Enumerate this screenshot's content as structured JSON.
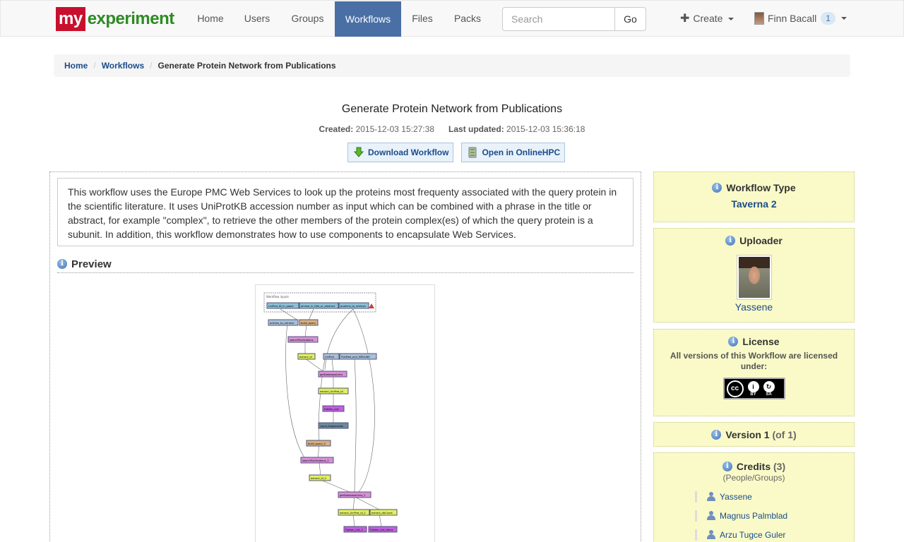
{
  "brand": {
    "part1": "my",
    "part2": "experiment"
  },
  "nav": {
    "items": [
      "Home",
      "Users",
      "Groups",
      "Workflows",
      "Files",
      "Packs"
    ],
    "active": "Workflows",
    "search_placeholder": "Search",
    "search_button": "Go",
    "create_label": "Create",
    "user_name": "Finn Bacall",
    "user_badge": "1"
  },
  "breadcrumb": {
    "home": "Home",
    "workflows": "Workflows",
    "current": "Generate Protein Network from Publications"
  },
  "workflow": {
    "title": "Generate Protein Network from Publications",
    "created_label": "Created:",
    "created": "2015-12-03 15:27:38",
    "updated_label": "Last updated:",
    "updated": "2015-12-03 15:36:18",
    "download_label": "Download Workflow",
    "open_label": "Open in OnlineHPC",
    "description": "This workflow uses the Europe PMC Web Services to look up the proteins most frequenty associated with the query protein in the scientific literature. It uses UniProtKB accession number as input which can be combined with a phrase in the title or abstract, for example \"complex\", to retrieve the other members of the protein complex(es) of which the query protein is a subunit. In addition, this workflow demonstrates how to use components to encapsulate Web Services.",
    "preview_label": "Preview"
  },
  "diagram": {
    "inputs_label": "Workflow inputs",
    "nodes": [
      "UniProt_ID_in_paper",
      "phrase_in_title_or_abstract",
      "proteins_to_retrieve",
      "articles_to_retrieve",
      "build_query",
      "searchPublications",
      "extract_id",
      "UniProt",
      "PubMed_and_MEDLINE",
      "getDatabaseLinks",
      "extract_UniProt_id",
      "Flatten_List",
      "count_frequencies",
      "build_query_2",
      "searchPublications_2",
      "extract_id_2",
      "getDatabaseLinks_2",
      "extract_UniProt_id_2",
      "extract_dbCount",
      "Flatten_List_2",
      "Flatten_List_items"
    ]
  },
  "sidebar": {
    "type_title": "Workflow Type",
    "type_value": "Taverna 2",
    "uploader_title": "Uploader",
    "uploader_name": "Yassene",
    "license_title": "License",
    "license_text": "All versions of this Workflow are licensed under:",
    "license_by": "BY",
    "license_sa": "SA",
    "version_title": "Version 1",
    "version_of": "(of 1)",
    "credits_title": "Credits",
    "credits_count": "(3)",
    "credits_sub": "(People/Groups)",
    "credits": [
      "Yassene",
      "Magnus Palmblad",
      "Arzu Tugce Guler"
    ]
  }
}
